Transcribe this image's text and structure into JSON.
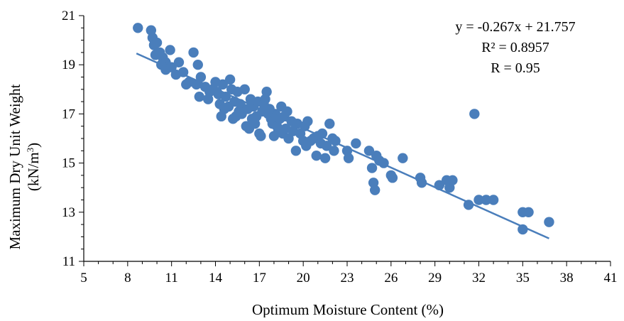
{
  "chart_data": {
    "type": "scatter",
    "xlabel": "Optimum Moisture Content (%)",
    "ylabel_line1": "Maximum Dry Unit Weight",
    "ylabel_line2_prefix": "(kN/m",
    "ylabel_line2_sup": "3",
    "ylabel_line2_suffix": ")",
    "xlim": [
      5,
      41
    ],
    "ylim": [
      11,
      21
    ],
    "xticks": [
      5,
      8,
      11,
      14,
      17,
      20,
      23,
      26,
      29,
      32,
      35,
      38,
      41
    ],
    "yticks": [
      11,
      13,
      15,
      17,
      19,
      21
    ],
    "marker_color": "#4a7ebb",
    "trendline": {
      "slope": -0.267,
      "intercept": 21.757,
      "x_start": 8.6,
      "x_end": 36.8,
      "color": "#4a7ebb"
    },
    "annotations": {
      "equation": "y = -0.267x + 21.757",
      "r_squared": "R² = 0.8957",
      "r": "R = 0.95"
    },
    "points": [
      [
        8.7,
        20.5
      ],
      [
        9.6,
        20.4
      ],
      [
        9.7,
        20.1
      ],
      [
        9.8,
        19.8
      ],
      [
        10.0,
        19.9
      ],
      [
        9.9,
        19.4
      ],
      [
        10.2,
        19.5
      ],
      [
        10.4,
        19.3
      ],
      [
        10.6,
        19.1
      ],
      [
        10.9,
        19.6
      ],
      [
        10.3,
        19.0
      ],
      [
        10.6,
        18.8
      ],
      [
        11.0,
        18.9
      ],
      [
        11.3,
        18.6
      ],
      [
        11.5,
        19.1
      ],
      [
        11.8,
        18.7
      ],
      [
        12.0,
        18.2
      ],
      [
        12.2,
        18.3
      ],
      [
        12.5,
        19.5
      ],
      [
        12.7,
        18.2
      ],
      [
        12.8,
        19.0
      ],
      [
        13.0,
        18.5
      ],
      [
        12.9,
        17.7
      ],
      [
        13.3,
        18.1
      ],
      [
        13.5,
        17.6
      ],
      [
        13.6,
        17.9
      ],
      [
        13.8,
        18.0
      ],
      [
        14.0,
        18.3
      ],
      [
        14.2,
        17.8
      ],
      [
        14.3,
        17.4
      ],
      [
        14.1,
        17.9
      ],
      [
        14.5,
        18.2
      ],
      [
        14.6,
        17.2
      ],
      [
        14.7,
        17.7
      ],
      [
        14.9,
        17.3
      ],
      [
        15.0,
        18.4
      ],
      [
        15.1,
        18.0
      ],
      [
        15.2,
        16.8
      ],
      [
        15.3,
        17.5
      ],
      [
        15.5,
        17.9
      ],
      [
        15.4,
        16.9
      ],
      [
        15.7,
        17.4
      ],
      [
        15.8,
        17.0
      ],
      [
        16.0,
        18.0
      ],
      [
        16.1,
        16.5
      ],
      [
        16.2,
        17.2
      ],
      [
        16.3,
        16.4
      ],
      [
        16.4,
        17.6
      ],
      [
        16.5,
        16.8
      ],
      [
        16.6,
        17.3
      ],
      [
        16.8,
        16.9
      ],
      [
        16.9,
        17.5
      ],
      [
        17.0,
        16.2
      ],
      [
        17.1,
        16.1
      ],
      [
        17.2,
        17.1
      ],
      [
        17.3,
        17.4
      ],
      [
        17.5,
        17.9
      ],
      [
        17.4,
        17.6
      ],
      [
        17.6,
        17.0
      ],
      [
        17.8,
        16.8
      ],
      [
        17.9,
        16.6
      ],
      [
        18.0,
        16.1
      ],
      [
        18.1,
        17.0
      ],
      [
        18.2,
        16.5
      ],
      [
        18.4,
        16.8
      ],
      [
        18.5,
        17.3
      ],
      [
        18.6,
        16.2
      ],
      [
        18.7,
        16.9
      ],
      [
        18.8,
        16.4
      ],
      [
        18.9,
        17.1
      ],
      [
        19.0,
        16.0
      ],
      [
        19.2,
        16.7
      ],
      [
        19.3,
        16.3
      ],
      [
        19.5,
        15.5
      ],
      [
        19.6,
        16.6
      ],
      [
        19.8,
        16.2
      ],
      [
        20.0,
        15.9
      ],
      [
        20.1,
        16.5
      ],
      [
        20.3,
        16.7
      ],
      [
        20.5,
        15.9
      ],
      [
        20.7,
        16.0
      ],
      [
        20.9,
        15.3
      ],
      [
        21.0,
        16.1
      ],
      [
        21.2,
        15.8
      ],
      [
        21.3,
        16.2
      ],
      [
        21.5,
        15.2
      ],
      [
        21.6,
        15.7
      ],
      [
        21.8,
        16.6
      ],
      [
        22.0,
        16.0
      ],
      [
        22.1,
        15.5
      ],
      [
        22.2,
        15.9
      ],
      [
        23.0,
        15.5
      ],
      [
        23.1,
        15.2
      ],
      [
        23.6,
        15.8
      ],
      [
        24.5,
        15.5
      ],
      [
        24.7,
        14.8
      ],
      [
        24.8,
        14.2
      ],
      [
        25.0,
        15.3
      ],
      [
        25.2,
        15.1
      ],
      [
        24.9,
        13.9
      ],
      [
        25.5,
        15.0
      ],
      [
        26.0,
        14.5
      ],
      [
        26.1,
        14.4
      ],
      [
        26.8,
        15.2
      ],
      [
        28.0,
        14.4
      ],
      [
        28.1,
        14.2
      ],
      [
        29.3,
        14.1
      ],
      [
        29.8,
        14.3
      ],
      [
        30.0,
        14.0
      ],
      [
        30.2,
        14.3
      ],
      [
        31.3,
        13.3
      ],
      [
        31.7,
        17.0
      ],
      [
        32.0,
        13.5
      ],
      [
        32.5,
        13.5
      ],
      [
        33.0,
        13.5
      ],
      [
        35.0,
        13.0
      ],
      [
        35.0,
        12.3
      ],
      [
        35.4,
        13.0
      ],
      [
        36.8,
        12.6
      ],
      [
        15.6,
        17.1
      ],
      [
        17.7,
        17.2
      ],
      [
        14.4,
        16.9
      ],
      [
        16.7,
        16.6
      ],
      [
        18.3,
        16.3
      ],
      [
        20.2,
        15.7
      ]
    ]
  }
}
